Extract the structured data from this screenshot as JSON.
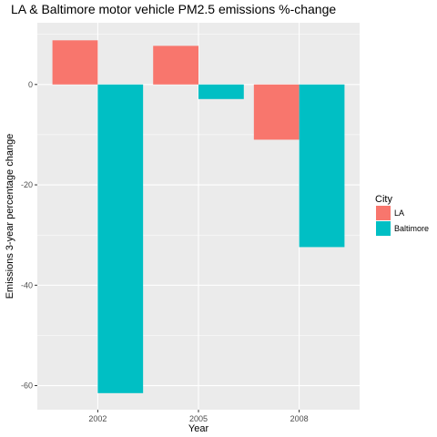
{
  "chart_data": {
    "type": "bar",
    "title": "LA & Baltimore motor vehicle PM2.5 emissions %-change",
    "xlabel": "Year",
    "ylabel": "Emissions 3-year percentage change",
    "categories": [
      "2002",
      "2005",
      "2008"
    ],
    "series": [
      {
        "name": "LA",
        "color": "#F8766D",
        "values": [
          8.8,
          7.7,
          -11.0
        ]
      },
      {
        "name": "Baltimore",
        "color": "#00BFC4",
        "values": [
          -61.5,
          -2.9,
          -32.4
        ]
      }
    ],
    "ylim": [
      -64.8,
      12.3
    ],
    "yticks": [
      0,
      -20,
      -40,
      -60
    ],
    "ytick_labels": [
      "0",
      "-20",
      "-40",
      "-60"
    ],
    "legend": {
      "title": "City",
      "position": "right"
    },
    "grid": true,
    "panel_background": "#EBEBEB"
  }
}
